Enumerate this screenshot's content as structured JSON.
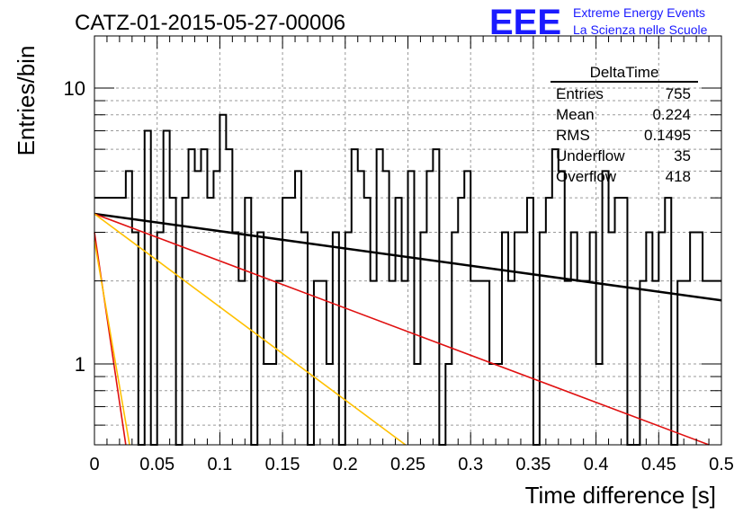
{
  "title": "CATZ-01-2015-05-27-00006",
  "logo": {
    "text": "EEE",
    "line1": "Extreme Energy Events",
    "line2": "La Scienza nelle Scuole",
    "color": "#1a1aff"
  },
  "stats": {
    "name": "DeltaTime",
    "rows": [
      {
        "label": "Entries",
        "value": "755"
      },
      {
        "label": "Mean",
        "value": "0.224"
      },
      {
        "label": "RMS",
        "value": "0.1495"
      },
      {
        "label": "Underflow",
        "value": "35"
      },
      {
        "label": "Overflow",
        "value": "418"
      }
    ]
  },
  "chart_data": {
    "type": "line",
    "title": "CATZ-01-2015-05-27-00006",
    "xlabel": "Time difference [s]",
    "ylabel": "Entries/bin",
    "xlim": [
      0,
      0.5
    ],
    "ylim": [
      0.5,
      15
    ],
    "yscale": "log",
    "grid": true,
    "x_ticks": [
      "0",
      "0.05",
      "0.1",
      "0.15",
      "0.2",
      "0.25",
      "0.3",
      "0.35",
      "0.4",
      "0.45",
      "0.5"
    ],
    "y_ticks": [
      "1",
      "10"
    ],
    "histogram": {
      "bin_width": 0.005,
      "color": "#000000",
      "values": [
        4,
        4,
        4,
        4,
        4,
        5,
        3,
        0,
        7,
        0,
        3,
        7,
        4,
        0,
        4,
        6,
        5,
        6,
        4,
        5,
        8,
        6,
        3,
        2,
        4,
        0,
        3,
        1,
        1,
        2,
        4,
        4,
        5,
        3,
        0,
        2,
        2,
        1,
        3,
        0,
        3,
        6,
        5,
        4,
        2,
        6,
        5,
        2,
        4,
        2,
        5,
        1,
        3,
        5,
        6,
        0,
        1,
        3,
        4,
        5,
        2,
        2,
        2,
        1,
        1,
        3,
        2,
        3,
        3,
        4,
        0,
        3,
        4,
        6,
        5,
        2,
        3,
        2,
        2,
        3,
        1,
        5,
        3,
        4,
        4,
        0,
        0,
        2,
        3,
        2,
        3,
        4,
        0,
        2,
        2,
        3,
        3,
        2,
        2,
        2
      ]
    },
    "series": [
      {
        "color": "#000000",
        "x": [
          0,
          0.5
        ],
        "y": [
          3.5,
          1.7
        ]
      },
      {
        "color": "#e01010",
        "x": [
          0,
          0.49
        ],
        "y": [
          3.5,
          0.5
        ]
      },
      {
        "color": "#e01010",
        "x": [
          0,
          0.025
        ],
        "y": [
          3.0,
          0.5
        ]
      },
      {
        "color": "#ffc000",
        "x": [
          0,
          0.248
        ],
        "y": [
          3.5,
          0.5
        ]
      },
      {
        "color": "#ffc000",
        "x": [
          0,
          0.028
        ],
        "y": [
          2.8,
          0.5
        ]
      }
    ]
  }
}
